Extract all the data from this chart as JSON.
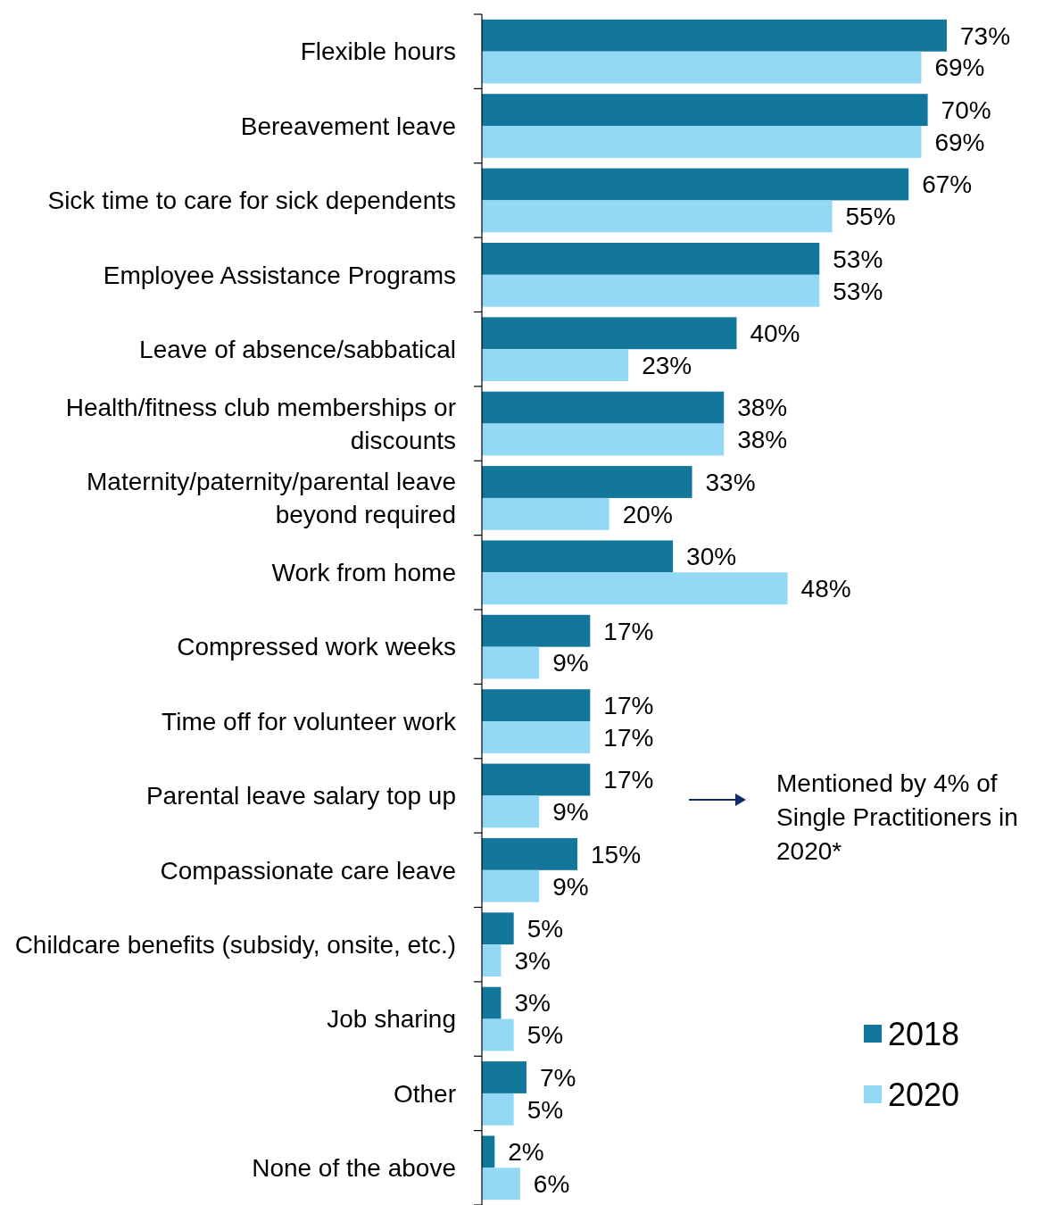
{
  "chart_data": {
    "type": "bar",
    "orientation": "horizontal",
    "categories": [
      "Flexible hours",
      "Bereavement leave",
      "Sick time to care for sick dependents",
      "Employee Assistance Programs",
      "Leave of absence/sabbatical",
      "Health/fitness club memberships or discounts",
      "Maternity/paternity/parental leave beyond required",
      "Work from home",
      "Compressed work weeks",
      "Time off for volunteer work",
      "Parental leave salary top up",
      "Compassionate care leave",
      "Childcare benefits (subsidy, onsite, etc.)",
      "Job sharing",
      "Other",
      "None of the above"
    ],
    "series": [
      {
        "name": "2018",
        "color": "#13769b",
        "values": [
          73,
          70,
          67,
          53,
          40,
          38,
          33,
          30,
          17,
          17,
          17,
          15,
          5,
          3,
          7,
          2
        ],
        "value_labels": [
          "73%",
          "70%",
          "67%",
          "53%",
          "40%",
          "38%",
          "33%",
          "30%",
          "17%",
          "17%",
          "17%",
          "15%",
          "5%",
          "3%",
          "7%",
          "2%"
        ]
      },
      {
        "name": "2020",
        "color": "#93d9f5",
        "values": [
          69,
          69,
          55,
          53,
          23,
          38,
          20,
          48,
          9,
          17,
          9,
          9,
          3,
          5,
          5,
          6
        ],
        "value_labels": [
          "69%",
          "69%",
          "55%",
          "53%",
          "23%",
          "38%",
          "20%",
          "48%",
          "9%",
          "17%",
          "9%",
          "9%",
          "3%",
          "5%",
          "5%",
          "6%"
        ]
      }
    ],
    "annotations": [
      "Mentioned by 4% of Single Practitioners in 2020*"
    ],
    "legend": "bottom right"
  }
}
